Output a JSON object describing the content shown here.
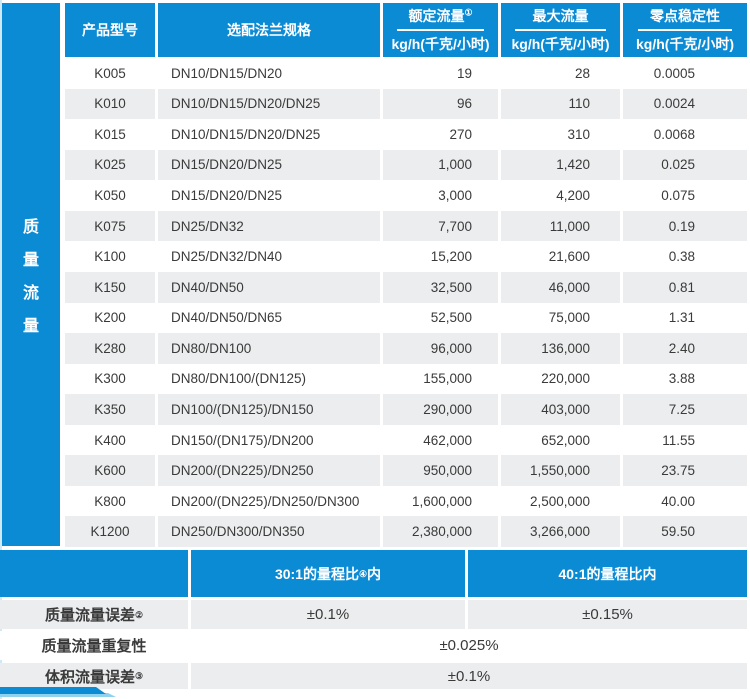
{
  "colors": {
    "blue": "#0c8bd5",
    "row_alt_gray": "#ebedee",
    "pale_edge": "#cfe9f7",
    "ribbon_light": "#8fd2f0"
  },
  "side_label": {
    "text": "质量流量",
    "chars": [
      "质",
      "量",
      "流",
      "量"
    ]
  },
  "main_table": {
    "headers": {
      "model": "产品型号",
      "flange": "选配法兰规格",
      "rated": {
        "title": "额定流量",
        "sup": "①",
        "unit": "kg/h(千克/小时)"
      },
      "max": {
        "title": "最大流量",
        "sup": "",
        "unit": "kg/h(千克/小时)"
      },
      "zero": {
        "title": "零点稳定性",
        "sup": "",
        "unit": "kg/h(千克/小时)"
      }
    },
    "rows": [
      {
        "model": "K005",
        "flange": "DN10/DN15/DN20",
        "rated": "19",
        "max": "28",
        "zero": "0.0005"
      },
      {
        "model": "K010",
        "flange": "DN10/DN15/DN20/DN25",
        "rated": "96",
        "max": "110",
        "zero": "0.0024"
      },
      {
        "model": "K015",
        "flange": "DN10/DN15/DN20/DN25",
        "rated": "270",
        "max": "310",
        "zero": "0.0068"
      },
      {
        "model": "K025",
        "flange": "DN15/DN20/DN25",
        "rated": "1,000",
        "max": "1,420",
        "zero": "0.025"
      },
      {
        "model": "K050",
        "flange": "DN15/DN20/DN25",
        "rated": "3,000",
        "max": "4,200",
        "zero": "0.075"
      },
      {
        "model": "K075",
        "flange": "DN25/DN32",
        "rated": "7,700",
        "max": "11,000",
        "zero": "0.19"
      },
      {
        "model": "K100",
        "flange": "DN25/DN32/DN40",
        "rated": "15,200",
        "max": "21,600",
        "zero": "0.38"
      },
      {
        "model": "K150",
        "flange": "DN40/DN50",
        "rated": "32,500",
        "max": "46,000",
        "zero": "0.81"
      },
      {
        "model": "K200",
        "flange": "DN40/DN50/DN65",
        "rated": "52,500",
        "max": "75,000",
        "zero": "1.31"
      },
      {
        "model": "K280",
        "flange": "DN80/DN100",
        "rated": "96,000",
        "max": "136,000",
        "zero": "2.40"
      },
      {
        "model": "K300",
        "flange": "DN80/DN100/(DN125)",
        "rated": "155,000",
        "max": "220,000",
        "zero": "3.88"
      },
      {
        "model": "K350",
        "flange": "DN100/(DN125)/DN150",
        "rated": "290,000",
        "max": "403,000",
        "zero": "7.25"
      },
      {
        "model": "K400",
        "flange": "DN150/(DN175)/DN200",
        "rated": "462,000",
        "max": "652,000",
        "zero": "11.55"
      },
      {
        "model": "K600",
        "flange": "DN200/(DN225)/DN250",
        "rated": "950,000",
        "max": "1,550,000",
        "zero": "23.75"
      },
      {
        "model": "K800",
        "flange": "DN200/(DN225)/DN250/DN300",
        "rated": "1,600,000",
        "max": "2,500,000",
        "zero": "40.00"
      },
      {
        "model": "K1200",
        "flange": "DN250/DN300/DN350",
        "rated": "2,380,000",
        "max": "3,266,000",
        "zero": "59.50"
      }
    ]
  },
  "accuracy_table": {
    "header": {
      "col1": {
        "pre": "30:1的量程比",
        "sup": "④",
        "post": "内"
      },
      "col2": {
        "pre": "40:1的量程比内",
        "sup": "",
        "post": ""
      }
    },
    "rows": [
      {
        "label": "质量流量误差",
        "sup": "②",
        "span": false,
        "values": [
          "±0.1%",
          "±0.15%"
        ]
      },
      {
        "label": "质量流量重复性",
        "sup": "",
        "span": true,
        "values": [
          "±0.025%"
        ]
      },
      {
        "label": "体积流量误差",
        "sup": "③",
        "span": true,
        "values": [
          "±0.1%"
        ]
      }
    ]
  }
}
